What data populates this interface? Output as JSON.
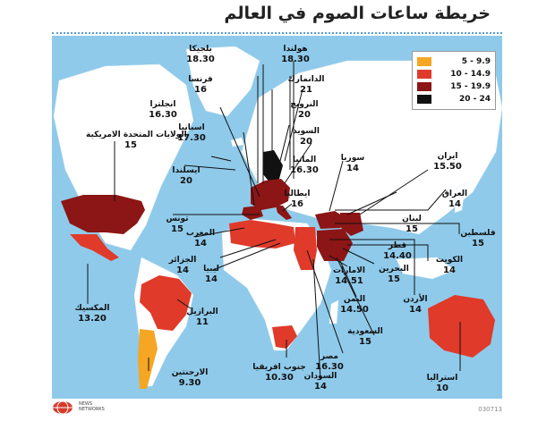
{
  "title": "خريطة ساعات الصوم في العالم",
  "legend": [
    {
      "range": "5 - 9.9",
      "color": "#f5a623"
    },
    {
      "range": "10 - 14.9",
      "color": "#e03a2a"
    },
    {
      "range": "15 - 19.9",
      "color": "#8c1515"
    },
    {
      "range": "20 - 24",
      "color": "#111111"
    }
  ],
  "countries": [
    {
      "name": "بلجيكا",
      "hours": "18.30"
    },
    {
      "name": "هولندا",
      "hours": "18.30"
    },
    {
      "name": "فرنسا",
      "hours": "16"
    },
    {
      "name": "الدانمارك",
      "hours": "21"
    },
    {
      "name": "انجلترا",
      "hours": "16.30"
    },
    {
      "name": "النرويج",
      "hours": "20"
    },
    {
      "name": "اسبانيا",
      "hours": "17.30"
    },
    {
      "name": "السويد",
      "hours": "20"
    },
    {
      "name": "الولايات المتحدة الامريكية",
      "hours": "15"
    },
    {
      "name": "سوريا",
      "hours": "14"
    },
    {
      "name": "ايران",
      "hours": "15.50"
    },
    {
      "name": "المانيا",
      "hours": "16.30"
    },
    {
      "name": "ايسلندا",
      "hours": "20"
    },
    {
      "name": "ايطاليا",
      "hours": "16"
    },
    {
      "name": "العراق",
      "hours": "14"
    },
    {
      "name": "لبنان",
      "hours": "15"
    },
    {
      "name": "تونس",
      "hours": "15"
    },
    {
      "name": "فلسطين",
      "hours": "15"
    },
    {
      "name": "المغرب",
      "hours": "14"
    },
    {
      "name": "قطر",
      "hours": "14.40"
    },
    {
      "name": "الجزائر",
      "hours": "14"
    },
    {
      "name": "الكويت",
      "hours": "14"
    },
    {
      "name": "البحرين",
      "hours": "15"
    },
    {
      "name": "ليبيا",
      "hours": "14"
    },
    {
      "name": "الامارات",
      "hours": "14.51"
    },
    {
      "name": "الأردن",
      "hours": "14"
    },
    {
      "name": "المكسيك",
      "hours": "13.20"
    },
    {
      "name": "البرازيل",
      "hours": "11"
    },
    {
      "name": "اليمن",
      "hours": "14.50"
    },
    {
      "name": "السعودية",
      "hours": "15"
    },
    {
      "name": "مصر",
      "hours": "16.30"
    },
    {
      "name": "جنوب افريقيا",
      "hours": "10.30"
    },
    {
      "name": "الارجنتين",
      "hours": "9.30"
    },
    {
      "name": "السودان",
      "hours": "14"
    },
    {
      "name": "استراليا",
      "hours": "10"
    }
  ],
  "footer": {
    "logo_text": "NEWS NETWORKS",
    "code": "030713"
  }
}
